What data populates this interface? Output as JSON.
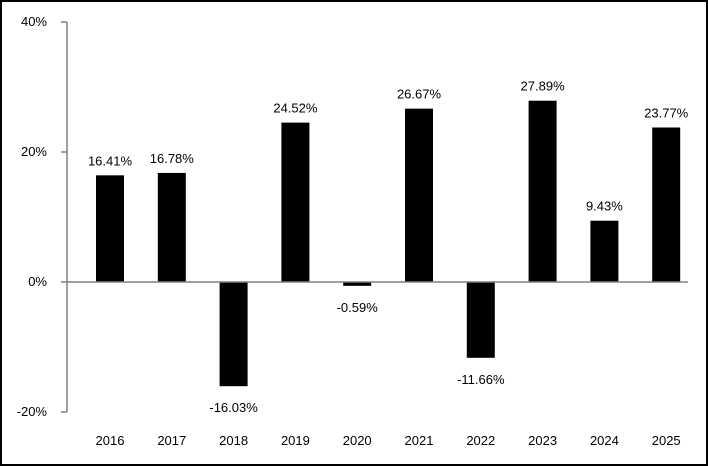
{
  "chart_data": {
    "type": "bar",
    "title": "",
    "xlabel": "",
    "ylabel": "",
    "categories": [
      "2016",
      "2017",
      "2018",
      "2019",
      "2020",
      "2021",
      "2022",
      "2023",
      "2024",
      "2025"
    ],
    "values": [
      16.41,
      16.78,
      -16.03,
      24.52,
      -0.59,
      26.67,
      -11.66,
      27.89,
      9.43,
      23.77
    ],
    "value_labels": [
      "16.41%",
      "16.78%",
      "-16.03%",
      "24.52%",
      "-0.59%",
      "26.67%",
      "-11.66%",
      "27.89%",
      "9.43%",
      "23.77%"
    ],
    "ylim": [
      -20,
      40
    ],
    "y_ticks": [
      -20,
      0,
      20,
      40
    ],
    "y_tick_labels": [
      "-20%",
      "0%",
      "20%",
      "40%"
    ],
    "grid": false,
    "legend": "none",
    "colors": {
      "bar": "#000000",
      "axis": "#808080",
      "frame": "#000000"
    }
  }
}
